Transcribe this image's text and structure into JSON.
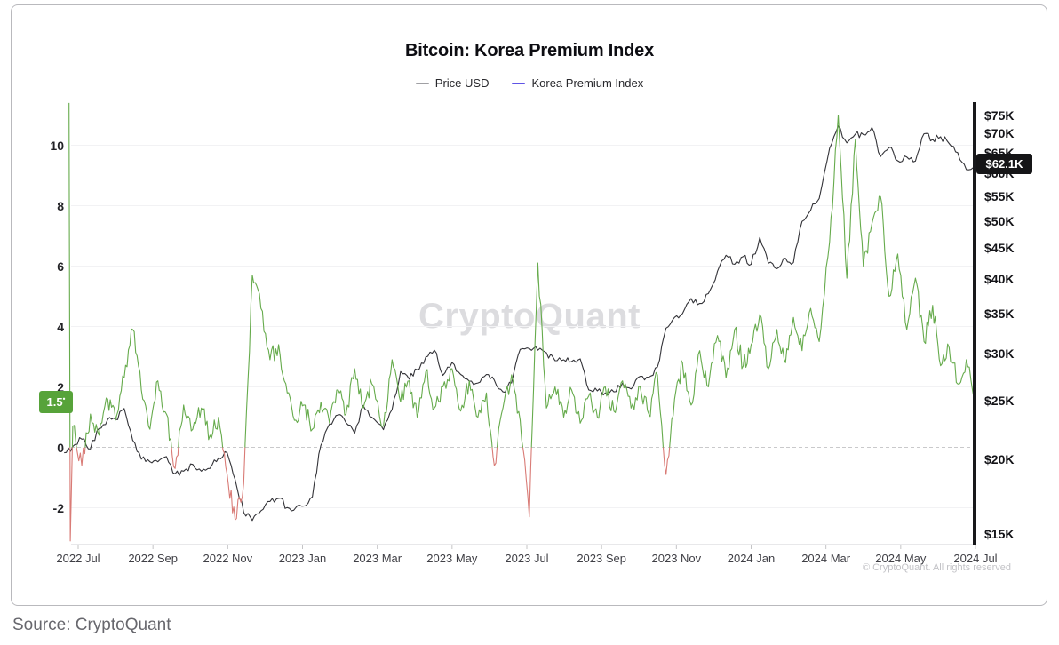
{
  "header": {
    "title": "Bitcoin: Korea Premium Index"
  },
  "legend": {
    "items": [
      {
        "label": "Price USD",
        "color": "#a0a0a4"
      },
      {
        "label": "Korea Premium Index",
        "color": "#5f54e6"
      }
    ]
  },
  "watermark": "CryptoQuant",
  "copyright": "© CryptoQuant. All rights reserved",
  "source": "Source: CryptoQuant",
  "badges": {
    "premium_current": {
      "text": "1.5",
      "sup": "•",
      "bg": "#57a33a"
    },
    "price_current": {
      "text": "$62.1K",
      "bg": "#151517"
    }
  },
  "axes": {
    "left": {
      "ticks": [
        10,
        8,
        6,
        4,
        2,
        0,
        -2
      ]
    },
    "right": {
      "ticks": [
        "$75K",
        "$70K",
        "$65K",
        "$60K",
        "$55K",
        "$50K",
        "$45K",
        "$40K",
        "$35K",
        "$30K",
        "$25K",
        "$20K",
        "$15K"
      ],
      "values_k": [
        75,
        70,
        65,
        60,
        55,
        50,
        45,
        40,
        35,
        30,
        25,
        20,
        15
      ]
    },
    "x": {
      "ticks": [
        "2022 Jul",
        "2022 Sep",
        "2022 Nov",
        "2023 Jan",
        "2023 Mar",
        "2023 May",
        "2023 Jul",
        "2023 Sep",
        "2023 Nov",
        "2024 Jan",
        "2024 Mar",
        "2024 May",
        "2024 Jul"
      ]
    }
  },
  "style": {
    "zero_line": "#c9c9cb",
    "grid": "#f2f2f4",
    "bottom_axis": "#d2d2d4",
    "tick_mark": "#c4c4c6",
    "axis_bar": "#18181b",
    "watermark_color": "#dcdcdf"
  },
  "chart_data": {
    "type": "line",
    "title": "Bitcoin: Korea Premium Index",
    "left_axis": {
      "label": "Korea Premium Index",
      "range": [
        -3.2,
        11.4
      ],
      "current_value": 1.5
    },
    "right_axis": {
      "label": "Price USD",
      "scale": "log",
      "range_k_usd": [
        14.5,
        78
      ],
      "current_value_k_usd": 62.1
    },
    "x_range": [
      "2022-06-20",
      "2024-07-01"
    ],
    "series": [
      {
        "name": "Price USD",
        "axis": "right",
        "color": "#333338",
        "x": [
          "2022-06-20",
          "2022-06-27",
          "2022-07-04",
          "2022-07-11",
          "2022-07-18",
          "2022-07-25",
          "2022-08-01",
          "2022-08-08",
          "2022-08-15",
          "2022-08-22",
          "2022-08-29",
          "2022-09-05",
          "2022-09-12",
          "2022-09-19",
          "2022-09-26",
          "2022-10-03",
          "2022-10-10",
          "2022-10-17",
          "2022-10-24",
          "2022-10-31",
          "2022-11-07",
          "2022-11-14",
          "2022-11-21",
          "2022-11-28",
          "2022-12-05",
          "2022-12-12",
          "2022-12-19",
          "2022-12-26",
          "2023-01-02",
          "2023-01-09",
          "2023-01-16",
          "2023-01-23",
          "2023-01-30",
          "2023-02-06",
          "2023-02-13",
          "2023-02-20",
          "2023-02-27",
          "2023-03-06",
          "2023-03-13",
          "2023-03-20",
          "2023-03-27",
          "2023-04-03",
          "2023-04-10",
          "2023-04-17",
          "2023-04-24",
          "2023-05-01",
          "2023-05-08",
          "2023-05-15",
          "2023-05-22",
          "2023-05-29",
          "2023-06-05",
          "2023-06-12",
          "2023-06-19",
          "2023-06-26",
          "2023-07-03",
          "2023-07-10",
          "2023-07-17",
          "2023-07-24",
          "2023-07-31",
          "2023-08-07",
          "2023-08-14",
          "2023-08-21",
          "2023-08-28",
          "2023-09-04",
          "2023-09-11",
          "2023-09-18",
          "2023-09-25",
          "2023-10-02",
          "2023-10-09",
          "2023-10-16",
          "2023-10-23",
          "2023-10-30",
          "2023-11-06",
          "2023-11-13",
          "2023-11-20",
          "2023-11-27",
          "2023-12-04",
          "2023-12-11",
          "2023-12-18",
          "2023-12-25",
          "2024-01-01",
          "2024-01-08",
          "2024-01-15",
          "2024-01-22",
          "2024-01-29",
          "2024-02-05",
          "2024-02-12",
          "2024-02-19",
          "2024-02-26",
          "2024-03-04",
          "2024-03-11",
          "2024-03-18",
          "2024-03-25",
          "2024-04-01",
          "2024-04-08",
          "2024-04-15",
          "2024-04-22",
          "2024-04-29",
          "2024-05-06",
          "2024-05-13",
          "2024-05-20",
          "2024-05-27",
          "2024-06-03",
          "2024-06-10",
          "2024-06-17",
          "2024-06-24",
          "2024-07-01"
        ],
        "values_k_usd": [
          20.5,
          21.0,
          21.6,
          20.8,
          22.5,
          23.3,
          23.3,
          24.3,
          21.5,
          20.0,
          19.8,
          19.8,
          20.2,
          18.9,
          19.1,
          19.6,
          19.1,
          19.3,
          20.1,
          20.5,
          18.5,
          16.3,
          15.8,
          16.4,
          17.0,
          17.2,
          16.6,
          16.6,
          16.7,
          17.3,
          21.1,
          22.9,
          23.7,
          23.0,
          22.1,
          24.6,
          23.5,
          22.4,
          24.2,
          28.0,
          27.2,
          28.2,
          29.6,
          30.4,
          27.6,
          29.0,
          27.7,
          27.0,
          26.8,
          27.7,
          27.1,
          25.9,
          26.8,
          30.5,
          30.6,
          30.4,
          30.1,
          29.2,
          29.3,
          29.1,
          29.4,
          26.1,
          26.0,
          25.8,
          25.9,
          26.8,
          26.2,
          27.5,
          27.4,
          28.5,
          33.1,
          34.5,
          35.0,
          37.1,
          36.4,
          37.8,
          41.2,
          43.8,
          42.3,
          43.6,
          42.3,
          46.9,
          42.5,
          41.6,
          43.3,
          42.6,
          49.9,
          52.1,
          54.5,
          66.1,
          72.1,
          67.5,
          69.8,
          69.7,
          71.6,
          64.0,
          66.3,
          63.0,
          63.9,
          62.9,
          69.9,
          68.4,
          69.1,
          67.3,
          65.0,
          60.9,
          62.1
        ]
      },
      {
        "name": "Korea Premium Index",
        "axis": "left",
        "color_positive": "#66ab4c",
        "color_negative": "#d97b76",
        "x": [
          "2022-06-24",
          "2022-06-25",
          "2022-06-27",
          "2022-07-04",
          "2022-07-11",
          "2022-07-18",
          "2022-07-25",
          "2022-08-01",
          "2022-08-08",
          "2022-08-15",
          "2022-08-22",
          "2022-08-29",
          "2022-09-05",
          "2022-09-12",
          "2022-09-19",
          "2022-09-26",
          "2022-10-03",
          "2022-10-10",
          "2022-10-17",
          "2022-10-24",
          "2022-10-31",
          "2022-11-07",
          "2022-11-14",
          "2022-11-21",
          "2022-11-28",
          "2022-12-05",
          "2022-12-12",
          "2022-12-19",
          "2022-12-26",
          "2023-01-02",
          "2023-01-09",
          "2023-01-16",
          "2023-01-23",
          "2023-01-30",
          "2023-02-06",
          "2023-02-13",
          "2023-02-20",
          "2023-02-27",
          "2023-03-06",
          "2023-03-13",
          "2023-03-20",
          "2023-03-27",
          "2023-04-03",
          "2023-04-10",
          "2023-04-17",
          "2023-04-24",
          "2023-05-01",
          "2023-05-08",
          "2023-05-15",
          "2023-05-22",
          "2023-05-29",
          "2023-06-05",
          "2023-06-12",
          "2023-06-19",
          "2023-06-26",
          "2023-07-03",
          "2023-07-10",
          "2023-07-17",
          "2023-07-24",
          "2023-07-31",
          "2023-08-07",
          "2023-08-14",
          "2023-08-21",
          "2023-08-28",
          "2023-09-04",
          "2023-09-11",
          "2023-09-18",
          "2023-09-25",
          "2023-10-02",
          "2023-10-09",
          "2023-10-16",
          "2023-10-23",
          "2023-10-30",
          "2023-11-06",
          "2023-11-13",
          "2023-11-20",
          "2023-11-27",
          "2023-12-04",
          "2023-12-11",
          "2023-12-18",
          "2023-12-25",
          "2024-01-01",
          "2024-01-08",
          "2024-01-15",
          "2024-01-22",
          "2024-01-29",
          "2024-02-05",
          "2024-02-12",
          "2024-02-19",
          "2024-02-26",
          "2024-03-04",
          "2024-03-11",
          "2024-03-18",
          "2024-03-25",
          "2024-04-01",
          "2024-04-08",
          "2024-04-15",
          "2024-04-22",
          "2024-04-29",
          "2024-05-06",
          "2024-05-13",
          "2024-05-20",
          "2024-05-27",
          "2024-06-03",
          "2024-06-10",
          "2024-06-17",
          "2024-06-24",
          "2024-07-01"
        ],
        "values_pct": [
          11.4,
          -3.1,
          0.7,
          -0.6,
          1.1,
          0.4,
          1.6,
          0.9,
          2.3,
          3.9,
          1.9,
          0.6,
          2.2,
          1.1,
          -0.7,
          1.4,
          0.6,
          1.3,
          0.4,
          1.0,
          -0.9,
          -2.4,
          -1.2,
          5.7,
          4.6,
          2.9,
          3.4,
          1.8,
          0.9,
          1.4,
          0.6,
          1.5,
          0.8,
          1.9,
          1.1,
          2.6,
          1.3,
          2.1,
          0.7,
          2.9,
          1.5,
          2.2,
          1.0,
          2.5,
          1.3,
          2.0,
          2.6,
          1.2,
          2.2,
          1.0,
          1.8,
          -0.6,
          1.3,
          2.4,
          0.9,
          -2.3,
          6.1,
          1.3,
          2.0,
          1.0,
          1.9,
          0.8,
          1.7,
          1.0,
          2.0,
          1.2,
          2.2,
          1.3,
          2.0,
          1.1,
          2.4,
          -0.9,
          1.6,
          2.8,
          1.4,
          3.2,
          2.0,
          3.7,
          2.3,
          3.9,
          2.7,
          3.4,
          4.4,
          2.6,
          3.9,
          2.8,
          4.3,
          3.2,
          4.6,
          3.5,
          6.8,
          11.0,
          5.6,
          10.2,
          6.0,
          7.4,
          8.3,
          5.0,
          6.4,
          3.9,
          5.6,
          3.5,
          4.7,
          2.7,
          3.3,
          2.1,
          2.9,
          1.5
        ]
      }
    ]
  }
}
